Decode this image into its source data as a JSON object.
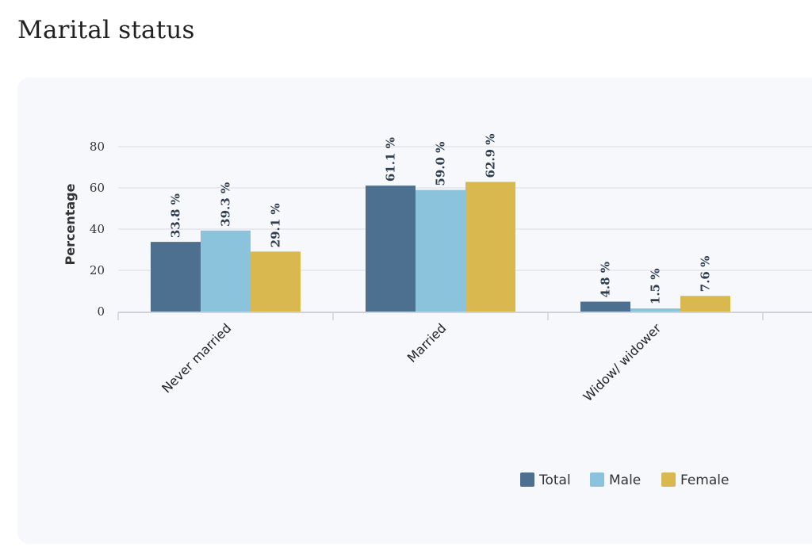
{
  "page": {
    "title": "Marital status"
  },
  "chart_data": {
    "type": "bar",
    "title": "",
    "xlabel": "",
    "ylabel": "Percentage",
    "ylim": [
      0,
      80
    ],
    "yticks": [
      0,
      20,
      40,
      60,
      80
    ],
    "grid": true,
    "legend_position": "bottom-right",
    "value_suffix": " %",
    "categories": [
      "Never married",
      "Married",
      "Widow/ widower"
    ],
    "series": [
      {
        "name": "Total",
        "color": "#4d7090",
        "values": [
          33.8,
          61.1,
          4.8
        ]
      },
      {
        "name": "Male",
        "color": "#8cc3dc",
        "values": [
          39.3,
          59.0,
          1.5
        ]
      },
      {
        "name": "Female",
        "color": "#d9b94f",
        "values": [
          29.1,
          62.9,
          7.6
        ]
      }
    ]
  }
}
